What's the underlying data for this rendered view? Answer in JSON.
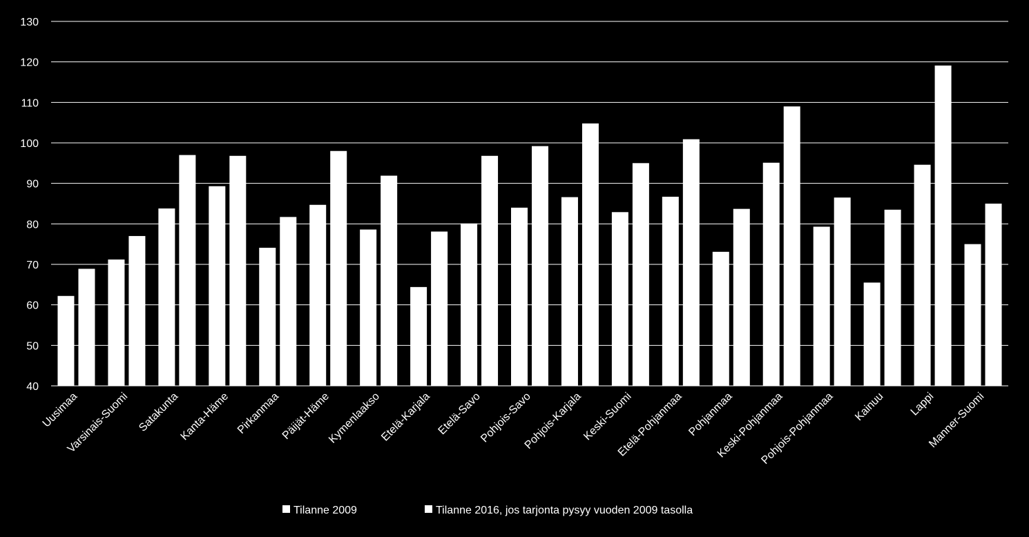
{
  "chart_data": {
    "type": "bar",
    "title": "",
    "xlabel": "",
    "ylabel": "",
    "ylim": [
      40,
      130
    ],
    "yticks": [
      40,
      50,
      60,
      70,
      80,
      90,
      100,
      110,
      120,
      130
    ],
    "grid": true,
    "legend_position": "bottom",
    "categories": [
      "Uusimaa",
      "Varsinais-Suomi",
      "Satakunta",
      "Kanta-Häme",
      "Pirkanmaa",
      "Päijät-Häme",
      "Kymenlaakso",
      "Etelä-Karjala",
      "Etelä-Savo",
      "Pohjois-Savo",
      "Pohjois-Karjala",
      "Keski-Suomi",
      "Etelä-Pohjanmaa",
      "Pohjanmaa",
      "Keski-Pohjanmaa",
      "Pohjois-Pohjanmaa",
      "Kainuu",
      "Lappi",
      "Manner-Suomi"
    ],
    "series": [
      {
        "name": "Tilanne 2009",
        "color": "#ffffff",
        "values": [
          62.2,
          71.2,
          83.8,
          89.3,
          74.1,
          84.7,
          78.6,
          64.4,
          80.1,
          84.0,
          86.6,
          82.9,
          86.7,
          73.1,
          95.1,
          79.3,
          65.5,
          94.6,
          75.0
        ]
      },
      {
        "name": "Tilanne 2016, jos tarjonta pysyy vuoden 2009 tasolla",
        "color": "#ffffff",
        "values": [
          68.9,
          77.0,
          97.0,
          96.8,
          81.7,
          98.0,
          91.9,
          78.1,
          96.8,
          99.2,
          104.8,
          95.0,
          100.9,
          83.7,
          109.0,
          86.5,
          83.5,
          119.1,
          85.0
        ]
      }
    ]
  },
  "colors": {
    "background": "#000000",
    "bars": "#ffffff",
    "gridline": "#ffffff",
    "text": "#ffffff"
  }
}
